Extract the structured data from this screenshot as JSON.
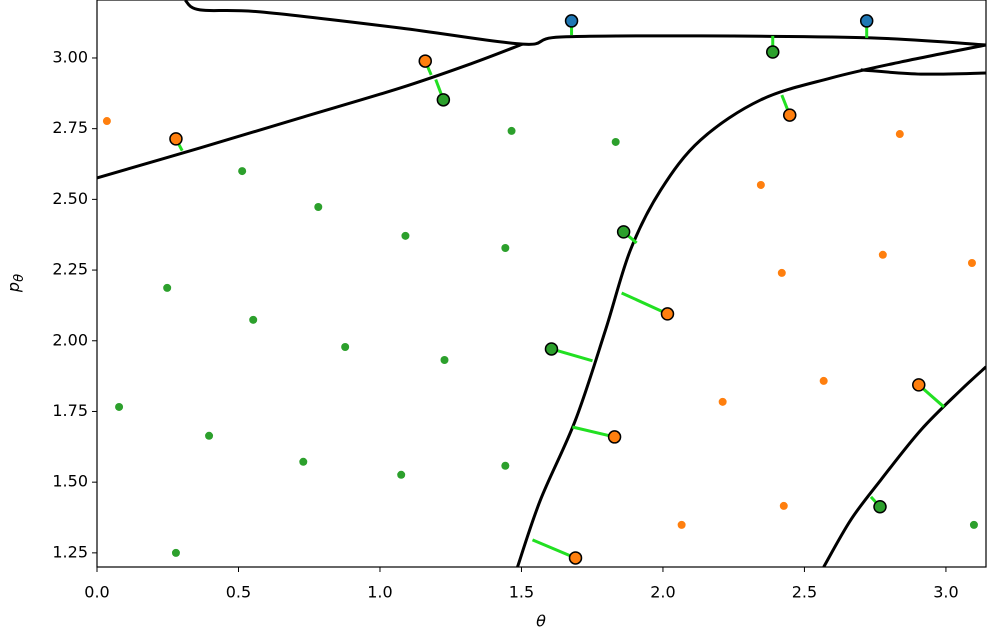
{
  "chart_data": {
    "type": "scatter",
    "x_label": "θ",
    "y_label": "p",
    "y_label_subscript": "θ",
    "xlim": [
      0,
      3.1416
    ],
    "ylim": [
      1.2,
      3.205
    ],
    "xticks": [
      {
        "value": 0,
        "label": "0.0"
      },
      0.5,
      {
        "value": 1,
        "label": "1.0"
      },
      1.5,
      {
        "value": 2,
        "label": "2.0"
      },
      2.5,
      {
        "value": 3,
        "label": "3.0"
      }
    ],
    "yticks": [
      1.25,
      {
        "value": 1.5,
        "label": "1.50"
      },
      1.75,
      {
        "value": 2,
        "label": "2.00"
      },
      2.25,
      {
        "value": 2.5,
        "label": "2.50"
      },
      2.75,
      {
        "value": 3,
        "label": "3.00"
      }
    ],
    "boundary_color": "#000000",
    "boundaries": [
      {
        "x": [
          0,
          0.364,
          0.718,
          1.072,
          1.32,
          1.504
        ],
        "y": [
          2.576,
          2.682,
          2.788,
          2.894,
          2.979,
          3.049
        ]
      },
      {
        "x": [
          0.311,
          0.364,
          0.577,
          1.072,
          1.504,
          1.638,
          2.133,
          2.735,
          3.142
        ],
        "y": [
          3.205,
          3.17,
          3.163,
          3.106,
          3.049,
          3.074,
          3.078,
          3.071,
          3.046
        ]
      },
      {
        "x": [
          1.486,
          1.567,
          1.691,
          1.797,
          1.885,
          1.992,
          2.133,
          2.346,
          2.593,
          2.841,
          3.142
        ],
        "y": [
          1.2,
          1.437,
          1.72,
          2.038,
          2.321,
          2.533,
          2.71,
          2.852,
          2.929,
          2.986,
          3.046
        ]
      },
      {
        "x": [
          2.699,
          2.912,
          3.142
        ],
        "y": [
          2.958,
          2.943,
          2.947
        ]
      },
      {
        "x": [
          2.568,
          2.664,
          2.77,
          2.912,
          3.053,
          3.142
        ],
        "y": [
          1.2,
          1.367,
          1.508,
          1.685,
          1.826,
          1.908
        ]
      }
    ],
    "projections": {
      "color": "#22e022",
      "x0": [
        0.279,
        1.16,
        1.224,
        1.677,
        2.388,
        2.72,
        2.448,
        1.861,
        2.016,
        1.606,
        1.829,
        1.691,
        2.904,
        2.767
      ],
      "y0": [
        2.714,
        2.989,
        2.852,
        3.131,
        3.021,
        3.131,
        2.798,
        2.385,
        2.095,
        1.971,
        1.66,
        1.232,
        1.844,
        1.413
      ],
      "x1": [
        0.301,
        1.181,
        1.197,
        1.677,
        2.388,
        2.72,
        2.42,
        1.907,
        1.854,
        1.751,
        1.68,
        1.539,
        2.993,
        2.735
      ],
      "y1": [
        2.672,
        2.94,
        2.924,
        3.081,
        3.078,
        3.071,
        2.869,
        2.346,
        2.169,
        1.929,
        1.695,
        1.296,
        1.766,
        1.448
      ]
    },
    "series": [
      {
        "color": "#2ca02c",
        "marker": "small",
        "x": [
          0.078,
          0.279,
          0.248,
          0.396,
          0.513,
          0.552,
          0.729,
          0.782,
          0.877,
          1.075,
          1.09,
          1.228,
          1.465,
          1.443,
          1.443,
          1.833,
          3.099
        ],
        "y": [
          1.766,
          1.25,
          2.187,
          1.664,
          2.6,
          2.074,
          1.572,
          2.473,
          1.978,
          1.526,
          2.371,
          1.932,
          2.742,
          2.328,
          1.558,
          2.703,
          1.349
        ]
      },
      {
        "color": "#ff7f0e",
        "marker": "small",
        "x": [
          0.035,
          2.346,
          2.42,
          2.837,
          2.777,
          3.092,
          2.568,
          2.211,
          2.066,
          2.427
        ],
        "y": [
          2.777,
          2.551,
          2.24,
          2.731,
          2.304,
          2.275,
          1.858,
          1.784,
          1.349,
          1.416
        ]
      },
      {
        "color": "#ff7f0e",
        "marker": "large",
        "x": [
          0.279,
          1.16,
          2.448,
          2.016,
          1.829,
          1.691,
          2.904
        ],
        "y": [
          2.714,
          2.989,
          2.798,
          2.095,
          1.66,
          1.232,
          1.844
        ]
      },
      {
        "color": "#2ca02c",
        "marker": "large",
        "x": [
          1.224,
          2.388,
          1.861,
          1.606,
          2.767
        ],
        "y": [
          2.852,
          3.021,
          2.385,
          1.971,
          1.413
        ]
      },
      {
        "color": "#1f77b4",
        "marker": "large",
        "x": [
          1.677,
          2.72
        ],
        "y": [
          3.131,
          3.131
        ]
      }
    ]
  }
}
